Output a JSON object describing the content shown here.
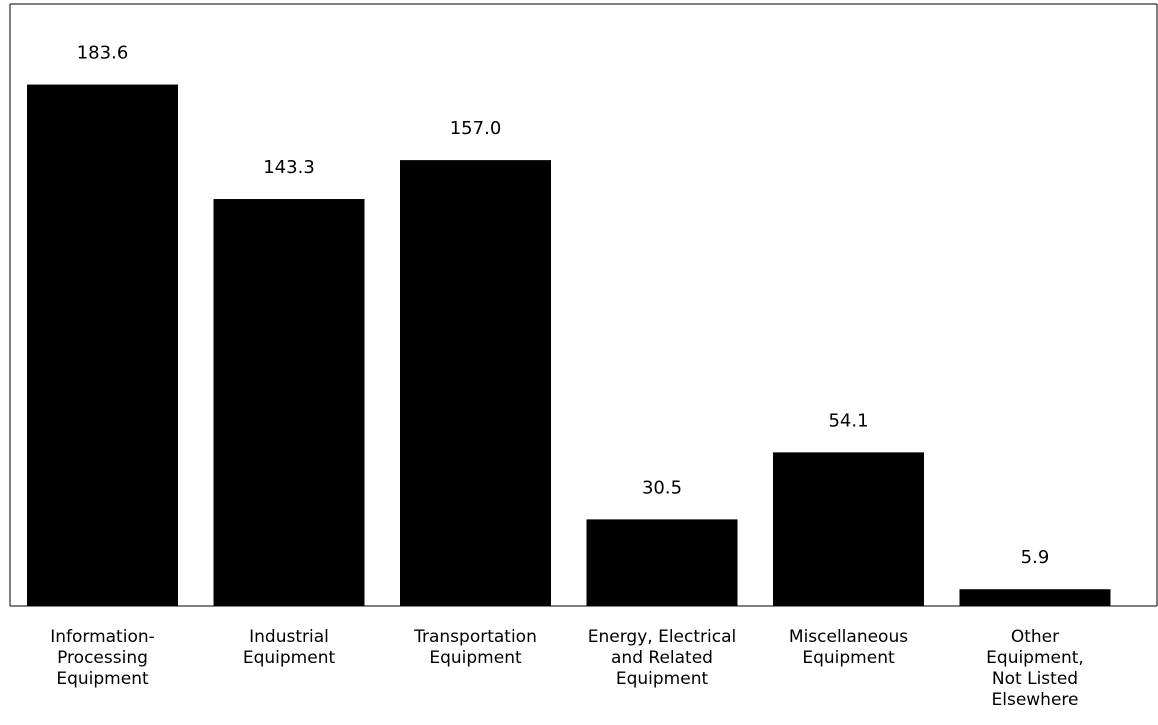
{
  "chart_data": {
    "type": "bar",
    "categories": [
      [
        "Information-",
        "Processing",
        "Equipment"
      ],
      [
        "Industrial",
        "Equipment"
      ],
      [
        "Transportation",
        "Equipment"
      ],
      [
        "Energy, Electrical",
        "and Related",
        "Equipment"
      ],
      [
        "Miscellaneous",
        "Equipment"
      ],
      [
        "Other",
        "Equipment,",
        "Not Listed",
        "Elsewhere"
      ]
    ],
    "values": [
      183.6,
      143.3,
      157.0,
      30.5,
      54.1,
      5.9
    ],
    "value_labels": [
      "183.6",
      "143.3",
      "157.0",
      "30.5",
      "54.1",
      "5.9"
    ],
    "title": "",
    "xlabel": "",
    "ylabel": "",
    "ylim": [
      0,
      200
    ],
    "grid": false,
    "legend": "none",
    "bar_color": "#000000",
    "axis_color": "#000000"
  }
}
